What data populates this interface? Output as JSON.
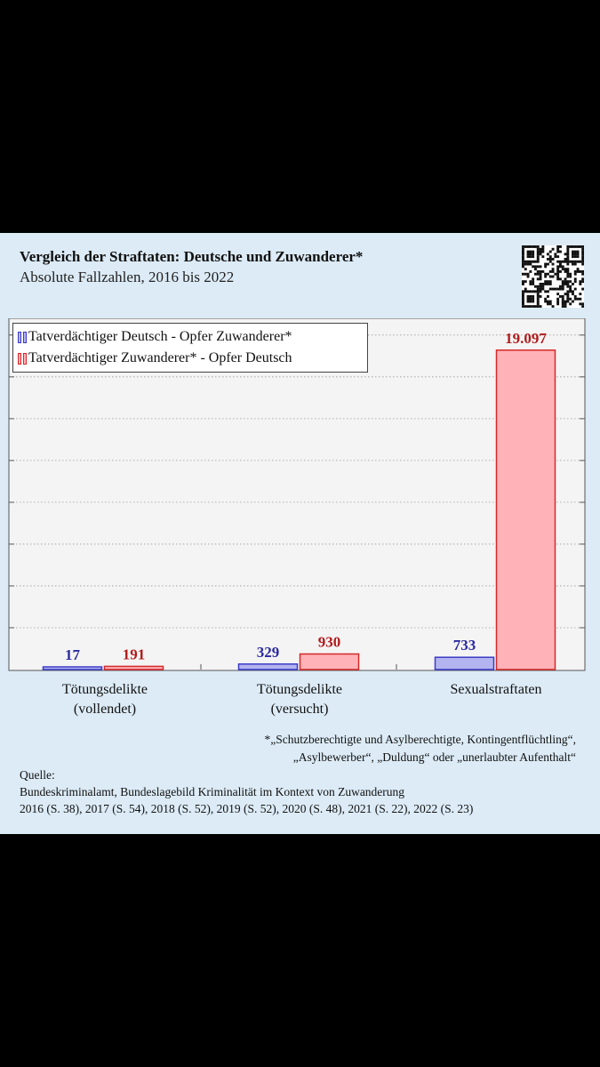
{
  "header": {
    "title": "Vergleich der Straftaten: Deutsche und Zuwanderer*",
    "subtitle": "Absolute Fallzahlen, 2016 bis 2022"
  },
  "chart_data": {
    "type": "bar",
    "categories": [
      "Tötungsdelikte\n(vollendet)",
      "Tötungsdelikte\n(versucht)",
      "Sexualstraftaten"
    ],
    "series": [
      {
        "name": "Tatverdächtiger Deutsch - Opfer Zuwanderer*",
        "values": [
          17,
          329,
          733
        ],
        "labels": [
          "17",
          "329",
          "733"
        ],
        "color": "#3b3bc8",
        "fill": "#b4b4f0"
      },
      {
        "name": "Tatverdächtiger Zuwanderer* - Opfer Deutsch",
        "values": [
          191,
          930,
          19097
        ],
        "labels": [
          "191",
          "930",
          "19.097"
        ],
        "color": "#d42a2a",
        "fill": "#ffb3b8"
      }
    ],
    "ylim": [
      0,
      21000
    ],
    "grid": true,
    "legend": "top-left"
  },
  "colors": {
    "panel_background": "#dcebf6",
    "plot_background": "#f5f4f4",
    "german_suspect": "#3b3bc8",
    "immigrant_suspect": "#d42a2a"
  },
  "qr_icon": "qr-code-icon",
  "footnote": {
    "line1": "*„Schutzberechtigte und Asylberechtigte, Kontingentflüchtling“,",
    "line2": "„Asylbewerber“, „Duldung“ oder „unerlaubter Aufenthalt“"
  },
  "source": {
    "heading": "Quelle:",
    "line1": "Bundeskriminalamt, Bundeslagebild Kriminalität im Kontext von Zuwanderung",
    "line2": "2016 (S. 38), 2017 (S. 54), 2018 (S. 52), 2019 (S. 52), 2020 (S. 48), 2021 (S. 22), 2022 (S. 23)"
  }
}
